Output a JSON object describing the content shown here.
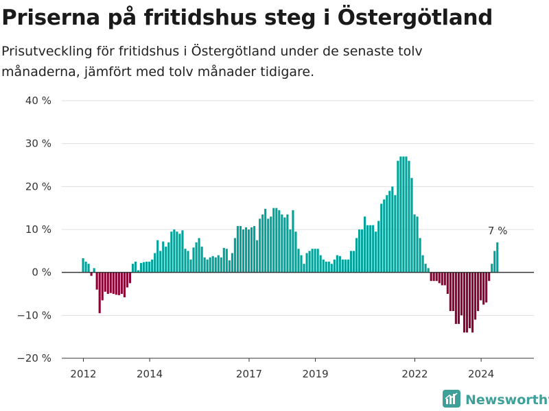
{
  "header": {
    "title": "Priserna på fritidshus steg i Östergötland",
    "subtitle": "Prisutveckling för fritidshus i Östergötland under de senaste tolv månaderna, jämfört med tolv månader tidigare."
  },
  "brand": {
    "name": "Newsworthy",
    "icon": "bar-chart-logo-icon"
  },
  "colors": {
    "positive": "#00a29a",
    "negative": "#8c0034",
    "grid": "#dddddd",
    "zero_line": "#333333"
  },
  "chart_data": {
    "type": "bar",
    "title": "Priserna på fritidshus steg i Östergötland",
    "subtitle": "Prisutveckling för fritidshus i Östergötland under de senaste tolv månaderna, jämfört med tolv månader tidigare.",
    "unit": "%",
    "ylim": [
      -20,
      40
    ],
    "y_ticks": [
      -20,
      -10,
      0,
      10,
      20,
      30,
      40
    ],
    "y_tick_labels": [
      "−20 %",
      "−10 %",
      "0 %",
      "10 %",
      "20 %",
      "30 %",
      "40 %"
    ],
    "x_ticks": [
      2012,
      2014,
      2017,
      2019,
      2022,
      2024
    ],
    "x_start": 2012.0,
    "x_step": 0.08333,
    "grid": true,
    "last_value_label": "7 %",
    "values": [
      3.3,
      2.5,
      2.0,
      -0.8,
      1.0,
      -4.0,
      -9.5,
      -6.5,
      -4.5,
      -5.0,
      -4.8,
      -5.0,
      -5.2,
      -5.3,
      -5.0,
      -5.8,
      -3.5,
      -2.5,
      2.0,
      2.5,
      0.5,
      2.2,
      2.4,
      2.5,
      2.5,
      3.0,
      4.5,
      7.5,
      5.0,
      7.2,
      6.0,
      7.0,
      9.5,
      10.0,
      9.5,
      9.0,
      9.8,
      5.5,
      5.0,
      3.0,
      5.8,
      7.0,
      8.0,
      6.0,
      3.5,
      3.0,
      3.5,
      3.8,
      3.5,
      4.0,
      3.5,
      5.7,
      5.5,
      2.8,
      4.5,
      8.0,
      10.8,
      10.8,
      10.0,
      10.5,
      10.0,
      10.5,
      10.8,
      7.5,
      12.5,
      13.5,
      14.8,
      12.5,
      13.0,
      15.0,
      15.0,
      14.5,
      13.5,
      12.8,
      13.5,
      10.0,
      14.5,
      9.5,
      5.5,
      4.0,
      2.0,
      4.5,
      5.0,
      5.5,
      5.5,
      5.5,
      4.0,
      3.0,
      2.5,
      2.5,
      2.0,
      3.0,
      4.0,
      3.8,
      3.0,
      3.0,
      3.0,
      5.0,
      5.0,
      8.0,
      10.0,
      10.0,
      13.0,
      11.0,
      11.0,
      11.0,
      9.5,
      12.0,
      16.0,
      17.0,
      18.0,
      19.0,
      20.0,
      18.0,
      26.0,
      27.0,
      27.0,
      27.0,
      26.0,
      22.0,
      13.5,
      13.0,
      8.0,
      4.0,
      2.0,
      1.0,
      -2.0,
      -2.0,
      -2.0,
      -2.5,
      -3.0,
      -3.0,
      -5.0,
      -9.0,
      -9.0,
      -12.0,
      -12.0,
      -10.0,
      -14.0,
      -14.0,
      -13.0,
      -14.0,
      -11.0,
      -9.0,
      -6.5,
      -7.5,
      -7.0,
      -2.0,
      2.0,
      5.0,
      7.0
    ]
  }
}
